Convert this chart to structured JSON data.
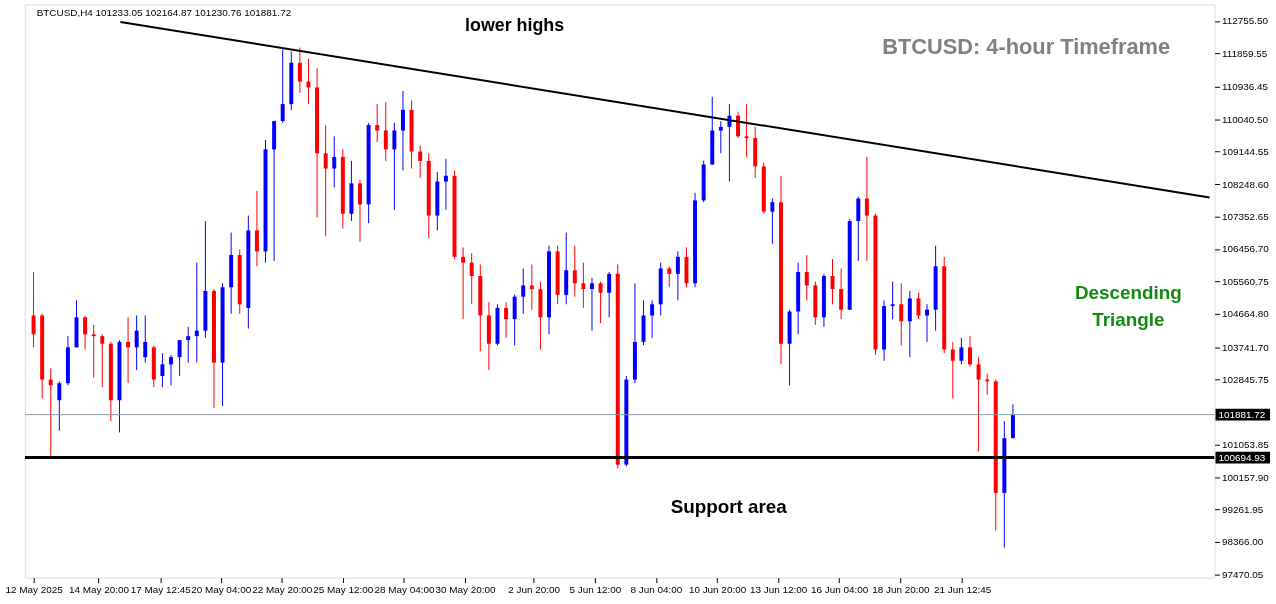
{
  "chart_data": {
    "type": "candlestick",
    "title": "BTCUSD: 4-hour Timeframe",
    "annotations": [
      "BTCUSD,H4  101233.05 102164.87 101230.76 101881.72",
      "lower highs",
      "Descending Triangle",
      "Support area"
    ],
    "x": [
      "2025-05-12T00:00",
      "2025-05-12T09:00",
      "2025-05-12T18:00",
      "2025-05-13T03:00",
      "2025-05-13T12:00",
      "2025-05-13T21:00",
      "2025-05-14T06:00",
      "2025-05-14T15:00",
      "2025-05-15T00:00",
      "2025-05-15T09:00",
      "2025-05-15T18:00",
      "2025-05-16T03:00",
      "2025-05-16T12:00",
      "2025-05-16T21:00",
      "2025-05-17T06:00",
      "2025-05-17T15:00",
      "2025-05-18T00:00",
      "2025-05-18T09:00",
      "2025-05-18T18:00",
      "2025-05-19T03:00",
      "2025-05-19T12:00",
      "2025-05-19T21:00",
      "2025-05-20T06:00",
      "2025-05-20T15:00",
      "2025-05-21T00:00",
      "2025-05-21T09:00",
      "2025-05-21T18:00",
      "2025-05-22T03:00",
      "2025-05-22T12:00",
      "2025-05-22T21:00",
      "2025-05-23T06:00",
      "2025-05-23T15:00",
      "2025-05-24T00:00",
      "2025-05-24T09:00",
      "2025-05-24T18:00",
      "2025-05-25T03:00",
      "2025-05-25T12:00",
      "2025-05-25T21:00",
      "2025-05-26T06:00",
      "2025-05-26T15:00",
      "2025-05-27T00:00",
      "2025-05-27T09:00",
      "2025-05-27T18:00",
      "2025-05-28T03:00",
      "2025-05-28T12:00",
      "2025-05-28T21:00",
      "2025-05-29T06:00",
      "2025-05-29T15:00",
      "2025-05-30T00:00",
      "2025-05-30T09:00",
      "2025-05-30T18:00",
      "2025-05-31T03:00",
      "2025-05-31T12:00",
      "2025-05-31T21:00",
      "2025-06-01T06:00",
      "2025-06-01T15:00",
      "2025-06-02T00:00",
      "2025-06-02T09:00",
      "2025-06-02T18:00",
      "2025-06-03T03:00",
      "2025-06-03T12:00",
      "2025-06-03T21:00",
      "2025-06-04T06:00",
      "2025-06-04T15:00",
      "2025-06-05T00:00",
      "2025-06-05T09:00",
      "2025-06-05T18:00",
      "2025-06-06T03:00",
      "2025-06-06T12:00",
      "2025-06-06T21:00",
      "2025-06-07T06:00",
      "2025-06-07T15:00",
      "2025-06-08T00:00",
      "2025-06-08T09:00",
      "2025-06-08T18:00",
      "2025-06-09T03:00",
      "2025-06-09T12:00",
      "2025-06-09T21:00",
      "2025-06-10T06:00",
      "2025-06-10T15:00",
      "2025-06-11T00:00",
      "2025-06-11T09:00",
      "2025-06-11T18:00",
      "2025-06-12T03:00",
      "2025-06-12T12:00",
      "2025-06-12T21:00",
      "2025-06-13T06:00",
      "2025-06-13T15:00",
      "2025-06-14T00:00",
      "2025-06-14T09:00",
      "2025-06-14T18:00",
      "2025-06-15T03:00",
      "2025-06-15T12:00",
      "2025-06-15T21:00",
      "2025-06-16T06:00",
      "2025-06-16T15:00",
      "2025-06-17T00:00",
      "2025-06-17T09:00",
      "2025-06-17T18:00",
      "2025-06-18T03:00",
      "2025-06-18T12:00",
      "2025-06-18T21:00",
      "2025-06-19T06:00",
      "2025-06-19T15:00",
      "2025-06-20T00:00",
      "2025-06-20T09:00",
      "2025-06-20T18:00",
      "2025-06-21T03:00",
      "2025-06-21T12:00",
      "2025-06-21T21:00",
      "2025-06-22T06:00",
      "2025-06-22T15:00",
      "2025-06-23T00:00",
      "2025-06-23T09:00",
      "2025-06-23T18:00"
    ],
    "ohlc": [
      [
        104620,
        105820,
        103740,
        104100
      ],
      [
        104620,
        104670,
        102330,
        102850
      ],
      [
        102850,
        103160,
        100710,
        102690
      ],
      [
        102280,
        102800,
        101440,
        102750
      ],
      [
        102750,
        104050,
        102690,
        103740
      ],
      [
        103740,
        105040,
        103740,
        104570
      ],
      [
        104570,
        104620,
        103680,
        104100
      ],
      [
        104100,
        104360,
        102900,
        104050
      ],
      [
        104050,
        104100,
        102640,
        103840
      ],
      [
        103840,
        103890,
        101700,
        102280
      ],
      [
        102280,
        103940,
        101390,
        103890
      ],
      [
        103890,
        104570,
        102750,
        103740
      ],
      [
        103740,
        104620,
        103110,
        104200
      ],
      [
        103470,
        104620,
        103320,
        103890
      ],
      [
        103740,
        103790,
        102640,
        102850
      ],
      [
        102950,
        103580,
        102640,
        103270
      ],
      [
        103270,
        103530,
        102690,
        103470
      ],
      [
        103470,
        103940,
        102950,
        103940
      ],
      [
        103940,
        104310,
        103320,
        104050
      ],
      [
        104050,
        106080,
        103320,
        104200
      ],
      [
        104200,
        107230,
        104000,
        105300
      ],
      [
        105300,
        105350,
        102070,
        103320
      ],
      [
        103320,
        105510,
        102120,
        105400
      ],
      [
        105400,
        106910,
        104670,
        106290
      ],
      [
        106290,
        106440,
        104670,
        104930
      ],
      [
        104830,
        107380,
        104260,
        106970
      ],
      [
        106970,
        108060,
        105980,
        106390
      ],
      [
        106390,
        109470,
        106080,
        109210
      ],
      [
        109210,
        110000,
        106130,
        109990
      ],
      [
        109990,
        111970,
        109940,
        110460
      ],
      [
        110460,
        111910,
        110300,
        111600
      ],
      [
        111600,
        112020,
        110770,
        111080
      ],
      [
        111080,
        111710,
        110460,
        110920
      ],
      [
        110920,
        111450,
        107330,
        109100
      ],
      [
        109100,
        109880,
        106810,
        108680
      ],
      [
        108680,
        109570,
        108160,
        109000
      ],
      [
        109000,
        109210,
        107020,
        107430
      ],
      [
        107430,
        108890,
        107230,
        108270
      ],
      [
        108270,
        108370,
        106650,
        107690
      ],
      [
        107690,
        109940,
        107170,
        109880
      ],
      [
        109880,
        110460,
        109410,
        109730
      ],
      [
        109730,
        110510,
        108890,
        109210
      ],
      [
        109210,
        109940,
        107540,
        109730
      ],
      [
        109730,
        110820,
        108630,
        110300
      ],
      [
        110300,
        110560,
        108680,
        109150
      ],
      [
        109150,
        109310,
        108420,
        108890
      ],
      [
        108890,
        109100,
        106760,
        107380
      ],
      [
        107380,
        108580,
        106970,
        108320
      ],
      [
        108320,
        108950,
        107540,
        108480
      ],
      [
        108480,
        108630,
        106180,
        106240
      ],
      [
        106240,
        106500,
        104520,
        106080
      ],
      [
        106080,
        106340,
        104930,
        105710
      ],
      [
        105710,
        106030,
        103630,
        104620
      ],
      [
        104620,
        104990,
        103110,
        103840
      ],
      [
        103840,
        104930,
        103790,
        104830
      ],
      [
        104830,
        104990,
        104000,
        104520
      ],
      [
        104520,
        105200,
        103790,
        105140
      ],
      [
        105140,
        105920,
        104670,
        105450
      ],
      [
        105450,
        106030,
        104780,
        105350
      ],
      [
        105350,
        105560,
        103680,
        104570
      ],
      [
        104570,
        106550,
        104100,
        106390
      ],
      [
        106390,
        106550,
        104930,
        105190
      ],
      [
        105190,
        106910,
        104930,
        105870
      ],
      [
        105870,
        106550,
        105140,
        105510
      ],
      [
        105510,
        106080,
        104830,
        105350
      ],
      [
        105350,
        105660,
        104200,
        105510
      ],
      [
        105510,
        105560,
        104410,
        105250
      ],
      [
        105250,
        105820,
        104570,
        105770
      ],
      [
        105770,
        106030,
        100400,
        100500
      ],
      [
        100500,
        102950,
        100450,
        102850
      ],
      [
        102850,
        105510,
        102750,
        103890
      ],
      [
        103890,
        105040,
        103800,
        104620
      ],
      [
        104620,
        105040,
        104000,
        104930
      ],
      [
        104930,
        106080,
        104620,
        105920
      ],
      [
        105920,
        105980,
        105400,
        105770
      ],
      [
        105770,
        106390,
        105040,
        106240
      ],
      [
        106240,
        106500,
        105400,
        105510
      ],
      [
        105510,
        108010,
        105400,
        107800
      ],
      [
        107800,
        108900,
        107750,
        108790
      ],
      [
        108790,
        110660,
        108790,
        109730
      ],
      [
        109730,
        109990,
        109100,
        109830
      ],
      [
        109830,
        110460,
        108320,
        110140
      ],
      [
        110140,
        110250,
        109520,
        109570
      ],
      [
        109570,
        110460,
        109000,
        109520
      ],
      [
        109520,
        109830,
        108420,
        108740
      ],
      [
        108740,
        108840,
        107430,
        107490
      ],
      [
        107490,
        107850,
        106600,
        107750
      ],
      [
        107750,
        108480,
        103270,
        103840
      ],
      [
        103840,
        104780,
        102690,
        104730
      ],
      [
        104730,
        106080,
        104100,
        105820
      ],
      [
        105820,
        106290,
        105040,
        105450
      ],
      [
        105450,
        105560,
        104360,
        104570
      ],
      [
        104570,
        105770,
        104310,
        105710
      ],
      [
        105710,
        106180,
        104930,
        105350
      ],
      [
        105350,
        105920,
        104520,
        104780
      ],
      [
        104780,
        107280,
        104780,
        107230
      ],
      [
        107230,
        107900,
        106130,
        107850
      ],
      [
        107850,
        109000,
        106130,
        107380
      ],
      [
        107380,
        107430,
        103530,
        103680
      ],
      [
        103680,
        105040,
        103370,
        104880
      ],
      [
        104880,
        105560,
        104520,
        104930
      ],
      [
        104930,
        105510,
        103790,
        104460
      ],
      [
        104460,
        105300,
        103470,
        105090
      ],
      [
        105090,
        105250,
        104520,
        104620
      ],
      [
        104620,
        104930,
        103890,
        104780
      ],
      [
        104780,
        106550,
        104200,
        105980
      ],
      [
        105980,
        106240,
        103580,
        103680
      ],
      [
        103680,
        103890,
        102330,
        103370
      ],
      [
        103370,
        104000,
        103270,
        103740
      ],
      [
        103740,
        104050,
        103210,
        103270
      ],
      [
        103270,
        103470,
        100870,
        102850
      ],
      [
        102850,
        103010,
        102430,
        102800
      ],
      [
        102800,
        102850,
        98680,
        99720
      ],
      [
        99720,
        101700,
        98210,
        101230
      ],
      [
        101233.05,
        102164.87,
        101230.76,
        101881.72
      ]
    ],
    "colors": [
      "#ff0000",
      "#ff0000",
      "#ff0000",
      "#0000ff",
      "#0000ff",
      "#0000ff",
      "#ff0000",
      "#ff0000",
      "#ff0000",
      "#ff0000",
      "#0000ff",
      "#ff0000",
      "#0000ff",
      "#0000ff",
      "#ff0000",
      "#0000ff",
      "#0000ff",
      "#0000ff",
      "#0000ff",
      "#0000ff",
      "#0000ff",
      "#ff0000",
      "#0000ff",
      "#0000ff",
      "#ff0000",
      "#0000ff",
      "#ff0000",
      "#0000ff",
      "#0000ff",
      "#0000ff",
      "#0000ff",
      "#ff0000",
      "#ff0000",
      "#ff0000",
      "#ff0000",
      "#0000ff",
      "#ff0000",
      "#0000ff",
      "#ff0000",
      "#0000ff",
      "#ff0000",
      "#ff0000",
      "#0000ff",
      "#0000ff",
      "#ff0000",
      "#ff0000",
      "#ff0000",
      "#0000ff",
      "#0000ff",
      "#ff0000",
      "#ff0000",
      "#ff0000",
      "#ff0000",
      "#ff0000",
      "#0000ff",
      "#ff0000",
      "#0000ff",
      "#0000ff",
      "#ff0000",
      "#ff0000",
      "#0000ff",
      "#ff0000",
      "#0000ff",
      "#ff0000",
      "#ff0000",
      "#0000ff",
      "#ff0000",
      "#0000ff",
      "#ff0000",
      "#0000ff",
      "#0000ff",
      "#0000ff",
      "#0000ff",
      "#0000ff",
      "#ff0000",
      "#0000ff",
      "#ff0000",
      "#0000ff",
      "#0000ff",
      "#0000ff",
      "#0000ff",
      "#0000ff",
      "#ff0000",
      "#ff0000",
      "#ff0000",
      "#ff0000",
      "#0000ff",
      "#ff0000",
      "#0000ff",
      "#0000ff",
      "#ff0000",
      "#ff0000",
      "#0000ff",
      "#ff0000",
      "#ff0000",
      "#0000ff",
      "#0000ff",
      "#ff0000",
      "#ff0000",
      "#0000ff",
      "#0000ff",
      "#ff0000",
      "#0000ff",
      "#ff0000",
      "#0000ff",
      "#0000ff",
      "#ff0000",
      "#ff0000",
      "#0000ff",
      "#ff0000",
      "#ff0000",
      "#ff0000",
      "#ff0000",
      "#0000ff",
      "#0000ff"
    ],
    "series": [
      {
        "type": "line",
        "x": [
          "2025-05-15T19:00",
          "2025-07-02T08:00"
        ],
        "values": [
          112730,
          107880
        ],
        "color": "#000000",
        "line_style": "solid"
      }
    ],
    "ref_lines": [
      {
        "axis": "y",
        "value": 100694.93,
        "label": "100694.93",
        "color": "#000000"
      },
      {
        "axis": "y",
        "value": 101881.72,
        "label": "101881.72",
        "color": "#8c9aa6"
      }
    ],
    "xlim": [
      "2025-05-11T20:00",
      "2025-07-02T08:00"
    ],
    "xticks": [
      {
        "value": "2025-05-12T00:00",
        "label": "12 May 2025"
      },
      {
        "value": "2025-05-14T20:00",
        "label": "14 May 20:00"
      },
      {
        "value": "2025-05-17T12:45",
        "label": "17 May 12:45"
      },
      {
        "value": "2025-05-20T04:00",
        "label": "20 May 04:00"
      },
      {
        "value": "2025-05-22T20:00",
        "label": "22 May 20:00"
      },
      {
        "value": "2025-05-25T12:00",
        "label": "25 May 12:00"
      },
      {
        "value": "2025-05-28T04:00",
        "label": "28 May 04:00"
      },
      {
        "value": "2025-05-30T20:00",
        "label": "30 May 20:00"
      },
      {
        "value": "2025-06-02T20:00",
        "label": "2 Jun 20:00"
      },
      {
        "value": "2025-06-05T12:00",
        "label": "5 Jun 12:00"
      },
      {
        "value": "2025-06-08T04:00",
        "label": "8 Jun 04:00"
      },
      {
        "value": "2025-06-10T20:00",
        "label": "10 Jun 20:00"
      },
      {
        "value": "2025-06-13T12:00",
        "label": "13 Jun 12:00"
      },
      {
        "value": "2025-06-16T04:00",
        "label": "16 Jun 04:00"
      },
      {
        "value": "2025-06-18T20:00",
        "label": "18 Jun 20:00"
      },
      {
        "value": "2025-06-21T12:45",
        "label": "21 Jun 12:45"
      }
    ],
    "ylim": [
      97380,
      113210
    ],
    "yticks": [
      {
        "value": 97470.05,
        "label": "97470.05"
      },
      {
        "value": 98366.0,
        "label": "98366.00"
      },
      {
        "value": 99261.95,
        "label": "99261.95"
      },
      {
        "value": 100157.9,
        "label": "100157.90"
      },
      {
        "value": 101053.85,
        "label": "101053.85"
      },
      {
        "value": 102845.75,
        "label": "102845.75"
      },
      {
        "value": 103741.7,
        "label": "103741.70"
      },
      {
        "value": 104664.8,
        "label": "104664.80"
      },
      {
        "value": 105560.75,
        "label": "105560.75"
      },
      {
        "value": 106456.7,
        "label": "106456.70"
      },
      {
        "value": 107352.65,
        "label": "107352.65"
      },
      {
        "value": 108248.6,
        "label": "108248.60"
      },
      {
        "value": 109144.55,
        "label": "109144.55"
      },
      {
        "value": 110040.5,
        "label": "110040.50"
      },
      {
        "value": 110936.45,
        "label": "110936.45"
      },
      {
        "value": 111859.55,
        "label": "111859.55"
      },
      {
        "value": 112755.5,
        "label": "112755.50"
      }
    ],
    "grid": false
  }
}
